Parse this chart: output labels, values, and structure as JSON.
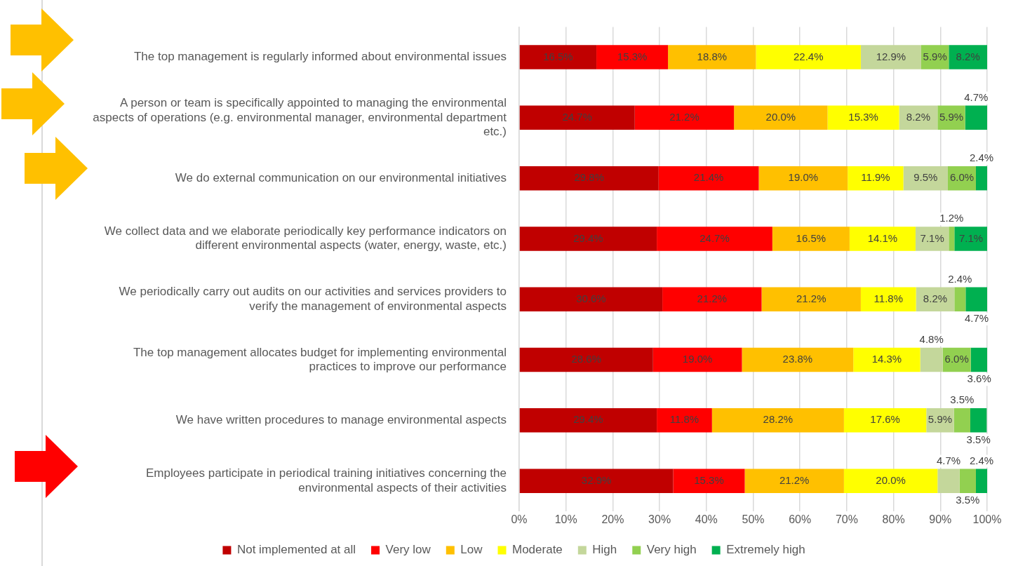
{
  "chart_data": {
    "type": "bar",
    "orientation": "horizontal",
    "stacked": true,
    "categories": [
      "The top management is regularly informed about environmental issues",
      "A person or team is specifically appointed to managing the environmental aspects of operations (e.g. environmental manager, environmental department etc.)",
      "We do external communication on our environmental initiatives",
      "We collect data and we elaborate periodically key performance indicators on different environmental aspects (water, energy, waste, etc.)",
      "We periodically carry out audits on our activities and services providers to verify the management of environmental aspects",
      "The top management allocates budget for implementing environmental practices to improve our performance",
      "We have written procedures to manage environmental aspects",
      "Employees participate in periodical training initiatives concerning the environmental aspects of their activities"
    ],
    "series": [
      {
        "name": "Not implemented at all",
        "color": "#c00000",
        "values": [
          16.5,
          24.7,
          29.8,
          29.4,
          30.6,
          28.6,
          29.4,
          32.9
        ],
        "value_labels": [
          "16.5%",
          "24.7%",
          "29.8%",
          "29.4%",
          "30.6%",
          "28.6%",
          "29.4%",
          "32.9%"
        ]
      },
      {
        "name": "Very low",
        "color": "#ff0000",
        "values": [
          15.3,
          21.2,
          21.4,
          24.7,
          21.2,
          19.0,
          11.8,
          15.3
        ],
        "value_labels": [
          "15.3%",
          "21.2%",
          "21.4%",
          "24.7%",
          "21.2%",
          "19.0%",
          "11.8%",
          "15.3%"
        ]
      },
      {
        "name": "Low",
        "color": "#ffc000",
        "values": [
          18.8,
          20.0,
          19.0,
          16.5,
          21.2,
          23.8,
          28.2,
          21.2
        ],
        "value_labels": [
          "18.8%",
          "20.0%",
          "19.0%",
          "16.5%",
          "21.2%",
          "23.8%",
          "28.2%",
          "21.2%"
        ]
      },
      {
        "name": "Moderate",
        "color": "#ffff00",
        "values": [
          22.4,
          15.3,
          11.9,
          14.1,
          11.8,
          14.3,
          17.6,
          20.0
        ],
        "value_labels": [
          "22.4%",
          "15.3%",
          "11.9%",
          "14.1%",
          "11.8%",
          "14.3%",
          "17.6%",
          "20.0%"
        ]
      },
      {
        "name": "High",
        "color": "#c4d79b",
        "values": [
          12.9,
          8.2,
          9.5,
          7.1,
          8.2,
          4.8,
          5.9,
          4.7
        ],
        "value_labels": [
          "12.9%",
          "8.2%",
          "9.5%",
          "7.1%",
          "8.2%",
          "4.8%",
          "5.9%",
          "4.7%"
        ]
      },
      {
        "name": "Very high",
        "color": "#92d050",
        "values": [
          5.9,
          5.9,
          6.0,
          1.2,
          2.4,
          6.0,
          3.5,
          3.5
        ],
        "value_labels": [
          "5.9%",
          "5.9%",
          "6.0%",
          "1.2%",
          "2.4%",
          "6.0%",
          "3.5%",
          "3.5%"
        ]
      },
      {
        "name": "Extremely high",
        "color": "#00b050",
        "values": [
          8.2,
          4.7,
          2.4,
          7.1,
          4.7,
          3.6,
          3.5,
          2.4
        ],
        "value_labels": [
          "8.2%",
          "4.7%",
          "2.4%",
          "7.1%",
          "4.7%",
          "3.6%",
          "3.5%",
          "2.4%"
        ]
      }
    ],
    "xlim": [
      0,
      100
    ],
    "xticks": [
      {
        "value": 0,
        "label": "0%"
      },
      {
        "value": 10,
        "label": "10%"
      },
      {
        "value": 20,
        "label": "20%"
      },
      {
        "value": 30,
        "label": "30%"
      },
      {
        "value": 40,
        "label": "40%"
      },
      {
        "value": 50,
        "label": "50%"
      },
      {
        "value": 60,
        "label": "60%"
      },
      {
        "value": 70,
        "label": "70%"
      },
      {
        "value": 80,
        "label": "80%"
      },
      {
        "value": 90,
        "label": "90%"
      },
      {
        "value": 100,
        "label": "100%"
      }
    ],
    "grid": "x",
    "legend": "bottom"
  }
}
